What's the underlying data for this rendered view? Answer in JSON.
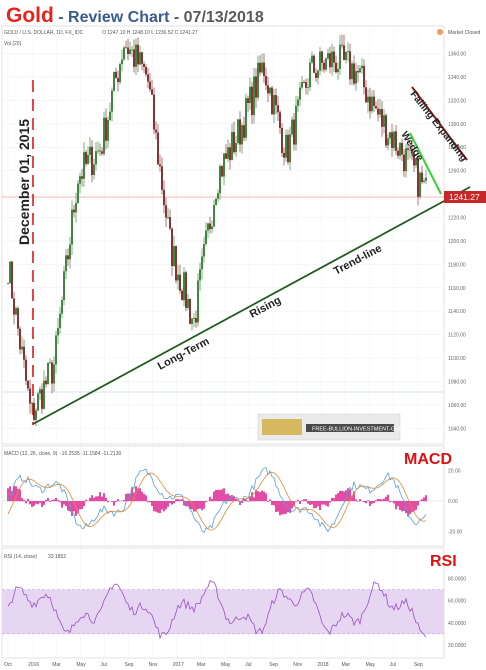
{
  "header": {
    "gold": "Gold",
    "subtitle": " - Review Chart",
    "date": " - 07/13/2018"
  },
  "price_panel": {
    "symbol_line": "GOLD / U.S. DOLLAR, 1D, FX_IDC",
    "ohlc": "O 1247.10  H 1248.10  L 1236.52  C 1241.27",
    "vol_label": "Vol (20)",
    "market_status": "Market Closed",
    "last_price_label": "1241.27"
  },
  "annotations": {
    "date_marker": "December 01, 2015",
    "trend_long": "Long-Term",
    "trend_rising": "Rising",
    "trend_line": "Trend-line",
    "falling_expanding": "Falling Expanding",
    "wedge": "Wedge",
    "watermark": "FREE-BULLION-INVESTMENT-GUIDE"
  },
  "macd_panel": {
    "title": "MACD",
    "params": "MACD (12, 26, close, 9)",
    "values": "-10.2535  -11.1584  -11.2130"
  },
  "rsi_panel": {
    "title": "RSI",
    "params": "RSI (14, close)",
    "value": "33.1852"
  },
  "colors": {
    "up_candle": "#2b7a2b",
    "down_candle": "#7a1f1f",
    "trend_line": "#1e5b1e",
    "macd_hist": "#e0399a",
    "macd_line": "#5a9fd4",
    "signal_line": "#e08a3c",
    "rsi_line": "#9b4fc6",
    "rsi_band": "#e6d6f2",
    "title_red": "#e8231b"
  },
  "chart_data": [
    {
      "type": "line",
      "x": [
        "Oct 2015",
        "Dec 2015",
        "Jan 2016",
        "Mar 2016",
        "May 2016",
        "Jul 2016",
        "Sep 2016",
        "Nov 2016",
        "Dec 2016",
        "Mar 2017",
        "Jun 2017",
        "Sep 2017",
        "Nov 2017",
        "Jan 2018",
        "Mar 2018",
        "Apr 2018",
        "May 2018",
        "Jun 2018",
        "Jul 2018"
      ],
      "series": [
        {
          "values": [
            1180,
            1050,
            1095,
            1255,
            1280,
            1370,
            1340,
            1195,
            1130,
            1255,
            1295,
            1350,
            1275,
            1345,
            1355,
            1345,
            1305,
            1275,
            1241.27
          ]
        }
      ],
      "y_ticks": [
        1040,
        1060,
        1080,
        1100,
        1120,
        1140,
        1160,
        1180,
        1200,
        1220,
        1240,
        1260,
        1280,
        1300,
        1320,
        1340,
        1360
      ],
      "x_ticks": [
        "Oct",
        "2016",
        "Mar",
        "May",
        "Jul",
        "Sep",
        "Nov",
        "2017",
        "Mar",
        "May",
        "Jul",
        "Sep",
        "Nov",
        "2018",
        "Mar",
        "May",
        "Jul",
        "Sep"
      ],
      "ylim": [
        1030,
        1375
      ],
      "trend_line": {
        "from": {
          "x": "Dec 2015",
          "y": 1045
        },
        "to": {
          "x": "Jul 2018",
          "y": 1240
        }
      }
    },
    {
      "type": "bar",
      "ylim": [
        -28,
        28
      ],
      "y_ticks": [
        20,
        0,
        -20
      ]
    },
    {
      "type": "line",
      "ylim": [
        10,
        95
      ],
      "y_ticks": [
        80,
        60,
        40,
        20
      ],
      "bands": [
        30,
        70
      ]
    }
  ]
}
